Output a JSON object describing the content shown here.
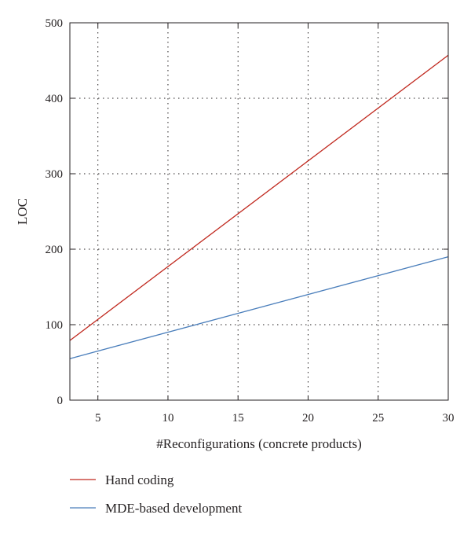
{
  "chart_data": {
    "type": "line",
    "xlabel": "#Reconfigurations (concrete products)",
    "ylabel": "LOC",
    "xlim": [
      3,
      30
    ],
    "ylim": [
      0,
      500
    ],
    "x_ticks": [
      5,
      10,
      15,
      20,
      25,
      30
    ],
    "y_ticks": [
      0,
      100,
      200,
      300,
      400,
      500
    ],
    "grid": "dotted",
    "legend_position": "bottom-left, below plot",
    "series": [
      {
        "name": "Hand coding",
        "color": "#c0281e",
        "x": [
          3,
          30
        ],
        "y": [
          79,
          457
        ]
      },
      {
        "name": "MDE-based development",
        "color": "#4a7ebb",
        "x": [
          3,
          30
        ],
        "y": [
          55,
          190
        ]
      }
    ]
  }
}
